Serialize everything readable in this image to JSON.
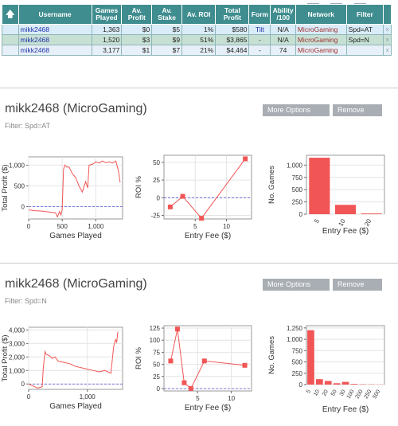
{
  "table": {
    "headers": [
      "Username",
      "Games Played",
      "Av. Profit",
      "Av. Stake",
      "Av. ROI",
      "Total Profit",
      "Form",
      "Ability /100",
      "Network",
      "Filter"
    ],
    "sort_icon": "up-arrow-icon",
    "rows": [
      {
        "user": "mikk2468",
        "games": "1,363",
        "profit": "$0",
        "stake": "$5",
        "roi": "1%",
        "total": "$580",
        "form": "Tilt",
        "ability": "N/A",
        "network": "MicroGaming",
        "filter": "Spd=AT",
        "close": "x"
      },
      {
        "user": "mikk2468",
        "games": "1,520",
        "profit": "$3",
        "stake": "$9",
        "roi": "51%",
        "total": "$3,865",
        "form": "-",
        "ability": "N/A",
        "network": "MicroGaming",
        "filter": "Spd=N",
        "close": "x"
      },
      {
        "user": "mikk2468",
        "games": "3,177",
        "profit": "$1",
        "stake": "$7",
        "roi": "21%",
        "total": "$4,464",
        "form": "-",
        "ability": "74",
        "network": "MicroGaming",
        "filter": "",
        "close": "x"
      }
    ]
  },
  "sections": [
    {
      "title": "mikk2468 (MicroGaming)",
      "filter": "Filter: Spd=AT",
      "more_options": "More Options",
      "remove": "Remove"
    },
    {
      "title": "mikk2468 (MicroGaming)",
      "filter": "Filter: Spd=N",
      "more_options": "More Options",
      "remove": "Remove"
    }
  ],
  "colors": {
    "header": "#3f8d8f",
    "series": "#f25555",
    "bar": "#f25555",
    "zero_line": "#5555dd"
  },
  "chart_data": [
    {
      "type": "line",
      "xlabel": "Games Played",
      "ylabel": "Total Profit ($)",
      "xlim": [
        0,
        1400
      ],
      "ylim": [
        -300,
        1200
      ],
      "xticks": [
        {
          "v": 0,
          "t": "0"
        },
        {
          "v": 500,
          "t": "500"
        },
        {
          "v": 1000,
          "t": "1,000"
        }
      ],
      "yticks": [
        {
          "v": 0,
          "t": "0"
        },
        {
          "v": 500,
          "t": "500"
        },
        {
          "v": 1000,
          "t": "1,000"
        }
      ],
      "x": [
        0,
        100,
        200,
        300,
        400,
        430,
        460,
        480,
        500,
        520,
        540,
        570,
        600,
        650,
        700,
        750,
        800,
        850,
        880,
        900,
        950,
        1000,
        1050,
        1100,
        1150,
        1200,
        1250,
        1300,
        1340,
        1363
      ],
      "y": [
        -80,
        -100,
        -110,
        -130,
        -150,
        -250,
        -120,
        -200,
        -80,
        900,
        1000,
        950,
        960,
        800,
        700,
        500,
        350,
        600,
        450,
        1000,
        1020,
        1080,
        1050,
        1100,
        1060,
        1080,
        1050,
        1100,
        850,
        580
      ]
    },
    {
      "type": "line_markers",
      "xlabel": "Entry Fee ($)",
      "ylabel": "ROI %",
      "xlim": [
        0,
        14
      ],
      "ylim": [
        -30,
        60
      ],
      "xticks": [
        {
          "v": 5,
          "t": "5"
        },
        {
          "v": 10,
          "t": "10"
        }
      ],
      "yticks": [
        {
          "v": -25,
          "t": "-25"
        },
        {
          "v": 0,
          "t": "0"
        },
        {
          "v": 25,
          "t": "25"
        },
        {
          "v": 50,
          "t": "50"
        }
      ],
      "x": [
        1,
        3,
        6,
        13
      ],
      "y": [
        -13,
        2,
        -29,
        55
      ]
    },
    {
      "type": "bar",
      "xlabel": "Entry Fee ($)",
      "ylabel": "No. Games",
      "ylim": [
        0,
        1200
      ],
      "categories": [
        "5",
        "10",
        "20"
      ],
      "values": [
        1150,
        190,
        15
      ],
      "yticks": [
        {
          "v": 0,
          "t": "0"
        },
        {
          "v": 250,
          "t": "250"
        },
        {
          "v": 500,
          "t": "500"
        },
        {
          "v": 750,
          "t": "750"
        },
        {
          "v": 1000,
          "t": "1,000"
        }
      ]
    },
    {
      "type": "line",
      "xlabel": "Games Played",
      "ylabel": "Total Profit ($)",
      "xlim": [
        0,
        1600
      ],
      "ylim": [
        -400,
        4200
      ],
      "xticks": [
        {
          "v": 0,
          "t": "0"
        },
        {
          "v": 1000,
          "t": "1,000"
        }
      ],
      "yticks": [
        {
          "v": 0,
          "t": "0"
        },
        {
          "v": 1000,
          "t": "1,000"
        },
        {
          "v": 2000,
          "t": "2,000"
        },
        {
          "v": 3000,
          "t": "3,000"
        },
        {
          "v": 4000,
          "t": "4,000"
        }
      ],
      "x": [
        0,
        50,
        100,
        150,
        200,
        230,
        250,
        280,
        300,
        350,
        400,
        450,
        500,
        600,
        700,
        800,
        900,
        1000,
        1100,
        1200,
        1300,
        1400,
        1450,
        1480,
        1500,
        1520
      ],
      "y": [
        0,
        -100,
        -200,
        -300,
        -250,
        -200,
        1200,
        2400,
        2200,
        2100,
        1900,
        2000,
        1700,
        1600,
        1500,
        1300,
        1200,
        1100,
        1000,
        900,
        1000,
        800,
        2800,
        3300,
        3100,
        3865
      ]
    },
    {
      "type": "line_markers",
      "xlabel": "Entry Fee ($)",
      "ylabel": "ROI %",
      "xlim": [
        0,
        13
      ],
      "ylim": [
        -5,
        130
      ],
      "xticks": [
        {
          "v": 5,
          "t": "5"
        },
        {
          "v": 10,
          "t": "10"
        }
      ],
      "yticks": [
        {
          "v": 0,
          "t": "0"
        },
        {
          "v": 25,
          "t": "25"
        },
        {
          "v": 50,
          "t": "50"
        },
        {
          "v": 75,
          "t": "75"
        },
        {
          "v": 100,
          "t": "100"
        },
        {
          "v": 125,
          "t": "125"
        }
      ],
      "x": [
        1,
        2,
        3,
        4,
        6,
        12
      ],
      "y": [
        57,
        123,
        12,
        0,
        57,
        48
      ]
    },
    {
      "type": "bar",
      "xlabel": "Entry Fee ($)",
      "ylabel": "No. Games",
      "ylim": [
        0,
        1300
      ],
      "categories": [
        "5",
        "10",
        "20",
        "50",
        "30",
        "100",
        "200",
        "250",
        "500"
      ],
      "values": [
        1200,
        120,
        80,
        30,
        60,
        15,
        8,
        6,
        4
      ],
      "yticks": [
        {
          "v": 0,
          "t": "0"
        },
        {
          "v": 250,
          "t": "250"
        },
        {
          "v": 500,
          "t": "500"
        },
        {
          "v": 750,
          "t": "750"
        },
        {
          "v": 1000,
          "t": "1,000"
        },
        {
          "v": 1250,
          "t": "1,250"
        }
      ]
    }
  ]
}
